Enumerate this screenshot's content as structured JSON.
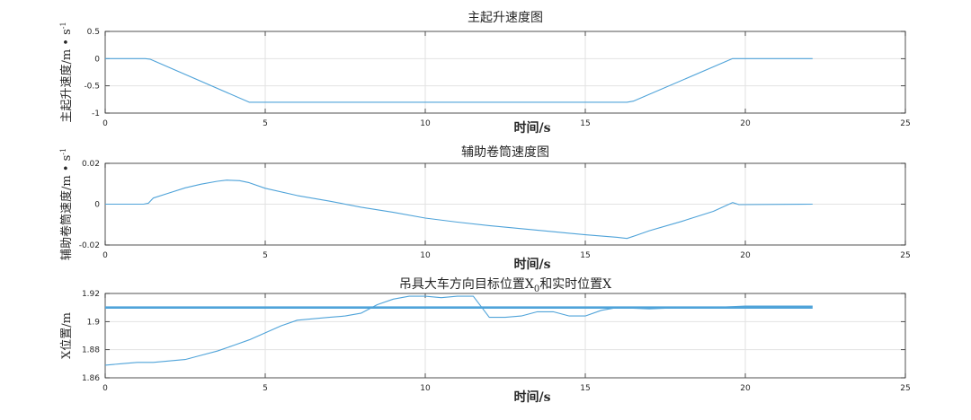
{
  "chart_data": [
    {
      "type": "line",
      "title": "主起升速度图",
      "xlabel": "时间/s",
      "ylabel": "主起升速度/m • s",
      "ylabel_sup": "-1",
      "xlim": [
        0,
        25
      ],
      "ylim": [
        -1,
        0.5
      ],
      "xticks": [
        0,
        5,
        10,
        15,
        20,
        25
      ],
      "yticks": [
        -1,
        -0.5,
        0,
        0.5
      ],
      "ytick_labels": [
        "-1",
        "-0.5",
        "0",
        "0.5"
      ],
      "grid": true,
      "color": "#4fa3d9",
      "series": [
        {
          "x": [
            0,
            1.25,
            1.4,
            4.5,
            16.3,
            16.5,
            19.6,
            22.1
          ],
          "y": [
            0,
            0,
            -0.01,
            -0.8,
            -0.8,
            -0.78,
            0,
            0
          ]
        }
      ]
    },
    {
      "type": "line",
      "title": "辅助卷筒速度图",
      "xlabel": "时间/s",
      "ylabel": "辅助卷筒速度/m • s",
      "ylabel_sup": "-1",
      "xlim": [
        0,
        25
      ],
      "ylim": [
        -0.02,
        0.02
      ],
      "xticks": [
        0,
        5,
        10,
        15,
        20,
        25
      ],
      "yticks": [
        -0.02,
        0,
        0.02
      ],
      "ytick_labels": [
        "-0.02",
        "0",
        "0.02"
      ],
      "grid": true,
      "color": "#4fa3d9",
      "series": [
        {
          "x": [
            0,
            1.2,
            1.35,
            1.5,
            2,
            2.5,
            3,
            3.5,
            3.8,
            4.2,
            4.5,
            5,
            6,
            7,
            8,
            9,
            10,
            11,
            12,
            13,
            14,
            15,
            16,
            16.3,
            16.6,
            17,
            18,
            19,
            19.6,
            19.8,
            22.1
          ],
          "y": [
            0,
            0,
            0.0005,
            0.003,
            0.0055,
            0.008,
            0.0098,
            0.0112,
            0.0118,
            0.0115,
            0.0105,
            0.0078,
            0.0042,
            0.0015,
            -0.0015,
            -0.004,
            -0.0068,
            -0.0088,
            -0.0105,
            -0.012,
            -0.0135,
            -0.015,
            -0.0162,
            -0.0168,
            -0.0152,
            -0.013,
            -0.0085,
            -0.0035,
            0.0008,
            -0.0002,
            0
          ]
        }
      ]
    },
    {
      "type": "line",
      "title": "吊具大车方向目标位置X",
      "title_sub": "0",
      "title_suffix": "和实时位置X",
      "xlabel": "时间/s",
      "ylabel": "X位置/m",
      "xlim": [
        0,
        25
      ],
      "ylim": [
        1.86,
        1.92
      ],
      "xticks": [
        0,
        5,
        10,
        15,
        20,
        25
      ],
      "yticks": [
        1.86,
        1.88,
        1.9,
        1.92
      ],
      "ytick_labels": [
        "1.86",
        "1.88",
        "1.9",
        "1.92"
      ],
      "grid": true,
      "color": "#4fa3d9",
      "series": [
        {
          "x": [
            0,
            22.1
          ],
          "y": [
            1.91,
            1.91
          ]
        },
        {
          "x": [
            0,
            0.5,
            1,
            1.5,
            2,
            2.5,
            3,
            3.5,
            4,
            4.5,
            5,
            5.5,
            6,
            6.5,
            7,
            7.5,
            8,
            8.5,
            9,
            9.5,
            10,
            10.5,
            11,
            11.5,
            12,
            12.5,
            13,
            13.5,
            14,
            14.5,
            15,
            15.5,
            16,
            17,
            18,
            19,
            20,
            21,
            22.1
          ],
          "y": [
            1.869,
            1.87,
            1.871,
            1.871,
            1.872,
            1.873,
            1.876,
            1.879,
            1.883,
            1.887,
            1.892,
            1.897,
            1.901,
            1.902,
            1.903,
            1.904,
            1.906,
            1.912,
            1.916,
            1.918,
            1.918,
            1.917,
            1.918,
            1.918,
            1.903,
            1.903,
            1.904,
            1.907,
            1.907,
            1.904,
            1.904,
            1.908,
            1.91,
            1.909,
            1.91,
            1.91,
            1.911,
            1.911,
            1.911
          ]
        }
      ]
    }
  ]
}
